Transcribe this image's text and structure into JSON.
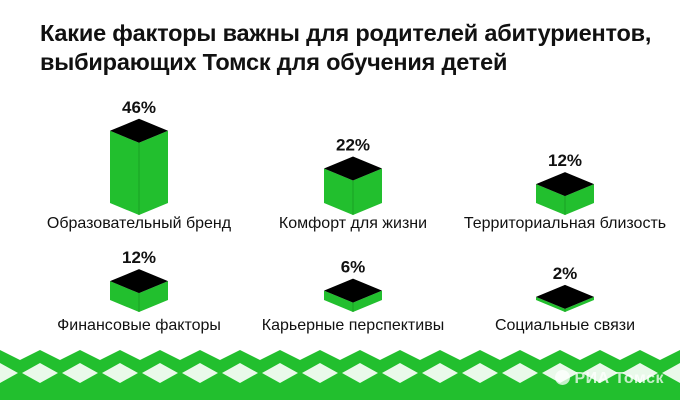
{
  "header": {
    "title_line1": "Какие факторы важны для родителей абитуриентов,",
    "title_line2": "выбирающих Томск для обучения детей"
  },
  "colors": {
    "bar_side": "#22bf2e",
    "bar_top": "#000000",
    "band": "#22bf2e",
    "band_light": "#e9f9ea"
  },
  "chart_data": {
    "type": "bar",
    "title": "Какие факторы важны для родителей абитуриентов, выбирающих Томск для обучения детей",
    "unit": "%",
    "categories": [
      "Образовательный бренд",
      "Комфорт для жизни",
      "Территориальная близость",
      "Финансовые факторы",
      "Карьерные перспективы",
      "Социальные связи"
    ],
    "values": [
      46,
      22,
      12,
      12,
      6,
      2
    ],
    "value_labels": [
      "46%",
      "22%",
      "12%",
      "12%",
      "6%",
      "2%"
    ]
  },
  "footer": {
    "brand": "РИА Томск",
    "brand_icon": "ria-logo-icon"
  }
}
